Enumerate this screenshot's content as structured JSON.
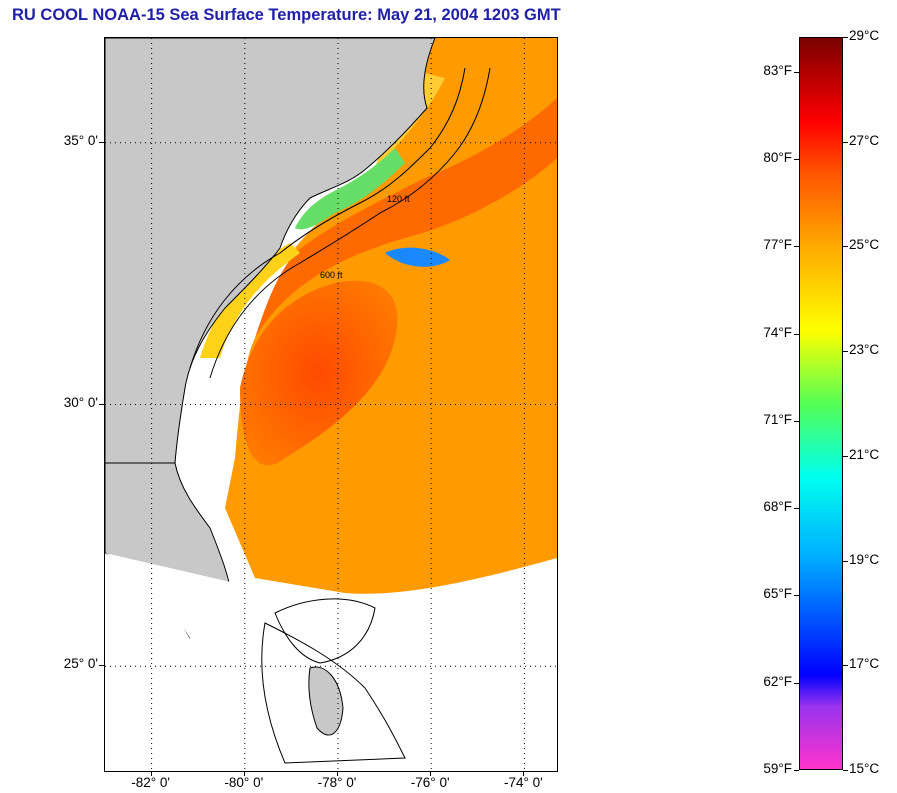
{
  "title": "RU COOL  NOAA-15  Sea Surface Temperature:  May 21, 2004 1203 GMT",
  "map": {
    "lat_range": [
      23.0,
      37.0
    ],
    "lon_range": [
      -83.0,
      -73.3
    ],
    "lat_labels": [
      {
        "value": 35,
        "text": "35° 0'"
      },
      {
        "value": 30,
        "text": "30° 0'"
      },
      {
        "value": 25,
        "text": "25° 0'"
      }
    ],
    "lon_labels": [
      {
        "value": -82,
        "text": "-82° 0'"
      },
      {
        "value": -80,
        "text": "-80° 0'"
      },
      {
        "value": -78,
        "text": "-78° 0'"
      },
      {
        "value": -76,
        "text": "-76° 0'"
      },
      {
        "value": -74,
        "text": "-74° 0'"
      }
    ],
    "gridlines": "dotted",
    "land_color": "#c8c8c8",
    "cloud_color": "#ffffff",
    "contour_labels": [
      "120 ft",
      "600 ft"
    ]
  },
  "colorbar": {
    "range_c": [
      15,
      29
    ],
    "fahrenheit_labels": [
      {
        "value": 83,
        "text": "83°F"
      },
      {
        "value": 80,
        "text": "80°F"
      },
      {
        "value": 77,
        "text": "77°F"
      },
      {
        "value": 74,
        "text": "74°F"
      },
      {
        "value": 71,
        "text": "71°F"
      },
      {
        "value": 68,
        "text": "68°F"
      },
      {
        "value": 65,
        "text": "65°F"
      },
      {
        "value": 62,
        "text": "62°F"
      },
      {
        "value": 59,
        "text": "59°F"
      }
    ],
    "celsius_labels": [
      {
        "value": 29,
        "text": "29°C"
      },
      {
        "value": 27,
        "text": "27°C"
      },
      {
        "value": 25,
        "text": "25°C"
      },
      {
        "value": 23,
        "text": "23°C"
      },
      {
        "value": 21,
        "text": "21°C"
      },
      {
        "value": 19,
        "text": "19°C"
      },
      {
        "value": 17,
        "text": "17°C"
      },
      {
        "value": 15,
        "text": "15°C"
      }
    ],
    "gradient_stops": [
      {
        "c": 15.0,
        "color": "#ff33cc"
      },
      {
        "c": 16.2,
        "color": "#9933ee"
      },
      {
        "c": 16.8,
        "color": "#0000ff"
      },
      {
        "c": 19.0,
        "color": "#00aaff"
      },
      {
        "c": 20.6,
        "color": "#00ffee"
      },
      {
        "c": 22.0,
        "color": "#55ff55"
      },
      {
        "c": 23.4,
        "color": "#ffff00"
      },
      {
        "c": 25.0,
        "color": "#ffaa00"
      },
      {
        "c": 26.4,
        "color": "#ff5500"
      },
      {
        "c": 27.4,
        "color": "#ff0000"
      },
      {
        "c": 29.0,
        "color": "#7a0000"
      }
    ]
  }
}
